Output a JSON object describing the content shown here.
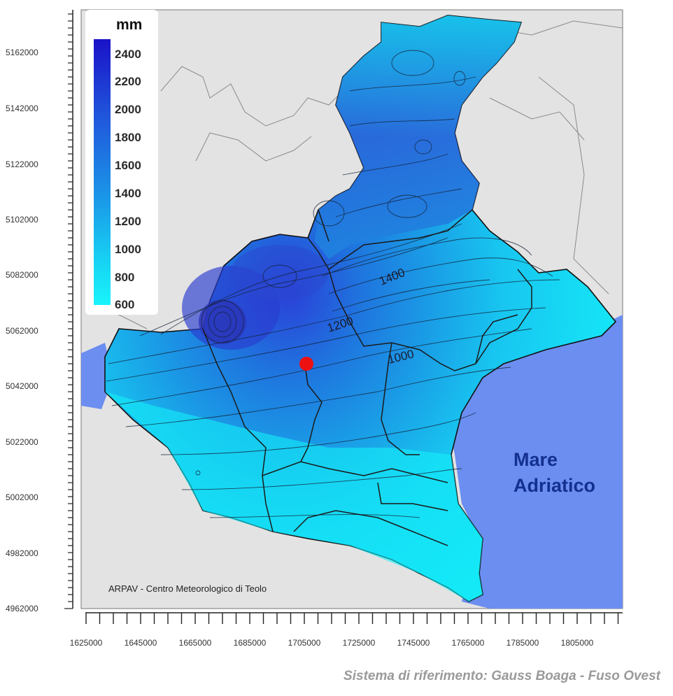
{
  "map": {
    "credit": "ARPAV - Centro Meteorologico di Teolo",
    "reference_system": "Sistema di riferimento: Gauss Boaga - Fuso Ovest",
    "sea_label_line1": "Mare",
    "sea_label_line2": "Adriatico",
    "contour_labels": [
      "1400",
      "1200",
      "1000"
    ],
    "marker": "red-point-marker"
  },
  "legend": {
    "unit": "mm",
    "labels": [
      "2400",
      "2200",
      "2000",
      "1800",
      "1600",
      "1400",
      "1200",
      "1000",
      "800",
      "600"
    ],
    "color_top": "#1a12c8",
    "color_bottom": "#18f4fb"
  },
  "axes": {
    "y_ticks": [
      "5162000",
      "5142000",
      "5122000",
      "5102000",
      "5082000",
      "5062000",
      "5042000",
      "5022000",
      "5002000",
      "4982000",
      "4962000"
    ],
    "x_ticks": [
      "1625000",
      "1645000",
      "1665000",
      "1685000",
      "1705000",
      "1725000",
      "1745000",
      "1765000",
      "1785000",
      "1805000"
    ]
  },
  "colors": {
    "background_land": "#e3e3e3",
    "sea": "#6b8ef0",
    "border_external": "#8a8a8a",
    "province_border": "#222222",
    "marker": "#ee1111"
  }
}
